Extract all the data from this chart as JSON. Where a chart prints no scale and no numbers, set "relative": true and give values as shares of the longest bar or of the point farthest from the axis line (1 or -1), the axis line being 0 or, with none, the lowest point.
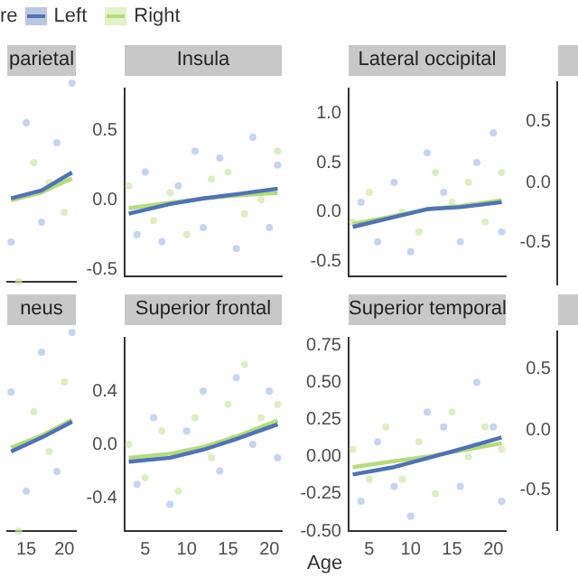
{
  "chart_data": [
    {
      "type": "scatter",
      "title": "parietal",
      "relative": true,
      "legend": "top",
      "legend_title": "re",
      "tick_labels": false,
      "xlim": [
        12.5,
        21.5
      ],
      "series": [
        {
          "type": "scatter",
          "color": "#a9bfe8",
          "x": [
            13,
            15,
            17,
            19,
            21
          ],
          "values": [
            0.2,
            0.8,
            0.3,
            0.7,
            1.0
          ]
        },
        {
          "type": "scatter",
          "color": "#cde6a6",
          "x": [
            14,
            16,
            18,
            20
          ],
          "values": [
            0.0,
            0.6,
            0.5,
            0.35
          ]
        },
        {
          "type": "line",
          "name": "Left",
          "color": "#4f72b8",
          "x": [
            13,
            17,
            21
          ],
          "values": [
            0.42,
            0.46,
            0.55
          ]
        },
        {
          "type": "line",
          "name": "Right",
          "color": "#b4dc78",
          "x": [
            13,
            17,
            21
          ],
          "values": [
            0.41,
            0.45,
            0.52
          ]
        }
      ]
    },
    {
      "type": "scatter",
      "title": "Insula",
      "tick_labels": "y",
      "xlim": [
        2.5,
        21.5
      ],
      "ylim": [
        -0.55,
        0.8
      ],
      "yticks": [
        {
          "value": -0.5,
          "label": "-0.5"
        },
        {
          "value": 0,
          "label": "0.0"
        },
        {
          "value": 0.5,
          "label": "0.5"
        }
      ],
      "series": [
        {
          "type": "scatter",
          "color": "#a9bfe8",
          "x": [
            4,
            5,
            7,
            9,
            11,
            12,
            14,
            16,
            18,
            20,
            21
          ],
          "values": [
            -0.25,
            0.2,
            -0.3,
            0.1,
            0.35,
            -0.2,
            0.3,
            -0.35,
            0.45,
            -0.2,
            0.25
          ]
        },
        {
          "type": "scatter",
          "color": "#cde6a6",
          "x": [
            3,
            6,
            8,
            10,
            13,
            15,
            17,
            19,
            21
          ],
          "values": [
            0.1,
            -0.15,
            0.05,
            -0.25,
            0.15,
            0.2,
            -0.1,
            0.0,
            0.35
          ]
        },
        {
          "type": "line",
          "color": "#4f72b8",
          "x": [
            3,
            8,
            12,
            16,
            21
          ],
          "values": [
            -0.1,
            -0.03,
            0.01,
            0.04,
            0.08
          ]
        },
        {
          "type": "line",
          "color": "#b4dc78",
          "x": [
            3,
            8,
            12,
            16,
            21
          ],
          "values": [
            -0.06,
            -0.02,
            0.01,
            0.03,
            0.05
          ]
        }
      ]
    },
    {
      "type": "scatter",
      "title": "Lateral occipital",
      "tick_labels": "y",
      "xlim": [
        2.5,
        21.5
      ],
      "ylim": [
        -0.65,
        1.25
      ],
      "yticks": [
        {
          "value": -0.5,
          "label": "-0.5"
        },
        {
          "value": 0,
          "label": "0.0"
        },
        {
          "value": 0.5,
          "label": "0.5"
        },
        {
          "value": 1,
          "label": "1.0"
        }
      ],
      "series": [
        {
          "type": "scatter",
          "color": "#a9bfe8",
          "x": [
            4,
            6,
            8,
            10,
            12,
            14,
            16,
            18,
            20,
            21
          ],
          "values": [
            0.1,
            -0.3,
            0.3,
            -0.4,
            0.6,
            0.2,
            -0.3,
            0.5,
            0.8,
            -0.2
          ]
        },
        {
          "type": "scatter",
          "color": "#cde6a6",
          "x": [
            3,
            5,
            9,
            11,
            13,
            15,
            17,
            19,
            21
          ],
          "values": [
            -0.1,
            0.2,
            0.0,
            -0.2,
            0.4,
            0.1,
            0.3,
            -0.1,
            0.4
          ]
        },
        {
          "type": "line",
          "color": "#4f72b8",
          "x": [
            3,
            8,
            12,
            16,
            21
          ],
          "values": [
            -0.15,
            -0.05,
            0.03,
            0.05,
            0.1
          ]
        },
        {
          "type": "line",
          "color": "#b4dc78",
          "x": [
            3,
            8,
            12,
            16,
            21
          ],
          "values": [
            -0.12,
            -0.04,
            0.03,
            0.06,
            0.12
          ]
        }
      ]
    },
    {
      "type": "other",
      "annotations": [
        "0.5",
        "0.0",
        "-0.5"
      ]
    },
    {
      "type": "scatter",
      "title": "neus",
      "relative": true,
      "tick_labels": "x",
      "xlim": [
        12.5,
        21.5
      ],
      "xticks": [
        15,
        20
      ],
      "series": [
        {
          "type": "scatter",
          "color": "#a9bfe8",
          "x": [
            13,
            15,
            17,
            19,
            21
          ],
          "values": [
            0.7,
            0.2,
            0.9,
            0.3,
            1.0
          ]
        },
        {
          "type": "scatter",
          "color": "#cde6a6",
          "x": [
            14,
            16,
            18,
            20
          ],
          "values": [
            0.0,
            0.6,
            0.4,
            0.75
          ]
        },
        {
          "type": "line",
          "color": "#4f72b8",
          "x": [
            13,
            17,
            21
          ],
          "values": [
            0.4,
            0.47,
            0.55
          ]
        },
        {
          "type": "line",
          "color": "#b4dc78",
          "x": [
            13,
            17,
            21
          ],
          "values": [
            0.42,
            0.48,
            0.56
          ]
        }
      ]
    },
    {
      "type": "scatter",
      "title": "Superior frontal",
      "xlim": [
        2.5,
        21.5
      ],
      "xticks": [
        5,
        10,
        15,
        20
      ],
      "ylim": [
        -0.65,
        0.8
      ],
      "yticks": [
        -0.4,
        {
          "value": 0,
          "label": "0.0"
        },
        0.4
      ],
      "series": [
        {
          "type": "scatter",
          "color": "#a9bfe8",
          "x": [
            4,
            6,
            8,
            10,
            12,
            14,
            16,
            18,
            20,
            21
          ],
          "values": [
            -0.3,
            0.2,
            -0.45,
            0.1,
            0.4,
            -0.2,
            0.5,
            0.0,
            0.4,
            -0.1
          ]
        },
        {
          "type": "scatter",
          "color": "#cde6a6",
          "x": [
            3,
            5,
            7,
            9,
            11,
            13,
            15,
            17,
            19,
            21
          ],
          "values": [
            0.0,
            -0.25,
            0.1,
            -0.35,
            0.2,
            -0.1,
            0.3,
            0.6,
            0.2,
            0.3
          ]
        },
        {
          "type": "line",
          "color": "#4f72b8",
          "x": [
            3,
            8,
            12,
            16,
            21
          ],
          "values": [
            -0.13,
            -0.1,
            -0.04,
            0.04,
            0.15
          ]
        },
        {
          "type": "line",
          "color": "#b4dc78",
          "x": [
            3,
            8,
            12,
            16,
            21
          ],
          "values": [
            -0.1,
            -0.07,
            -0.02,
            0.06,
            0.18
          ]
        }
      ]
    },
    {
      "type": "scatter",
      "title": "Superior temporal",
      "xlabel": "Age",
      "xlim": [
        2.5,
        21.5
      ],
      "xticks": [
        5,
        10,
        15,
        20
      ],
      "ylim": [
        -0.5,
        0.8
      ],
      "yticks": [
        {
          "value": -0.5,
          "label": "-0.50"
        },
        -0.25,
        {
          "value": 0,
          "label": "0.00"
        },
        0.25,
        {
          "value": 0.5,
          "label": "0.50"
        },
        0.75
      ],
      "series": [
        {
          "type": "scatter",
          "color": "#a9bfe8",
          "x": [
            4,
            6,
            8,
            10,
            12,
            14,
            16,
            18,
            20,
            21
          ],
          "values": [
            -0.3,
            0.1,
            -0.2,
            -0.4,
            0.3,
            0.2,
            -0.2,
            0.5,
            0.2,
            -0.3
          ]
        },
        {
          "type": "scatter",
          "color": "#cde6a6",
          "x": [
            3,
            5,
            7,
            9,
            11,
            13,
            15,
            17,
            19,
            21
          ],
          "values": [
            0.05,
            -0.15,
            0.2,
            -0.15,
            0.1,
            -0.25,
            0.3,
            0.0,
            0.2,
            0.05
          ]
        },
        {
          "type": "line",
          "color": "#4f72b8",
          "x": [
            3,
            8,
            12,
            16,
            21
          ],
          "values": [
            -0.12,
            -0.07,
            -0.01,
            0.05,
            0.13
          ]
        },
        {
          "type": "line",
          "color": "#b4dc78",
          "x": [
            3,
            8,
            12,
            16,
            21
          ],
          "values": [
            -0.07,
            -0.03,
            0.0,
            0.04,
            0.09
          ]
        }
      ]
    },
    {
      "type": "other",
      "annotations": [
        "0.5",
        "0.0",
        "-0.5"
      ]
    }
  ]
}
